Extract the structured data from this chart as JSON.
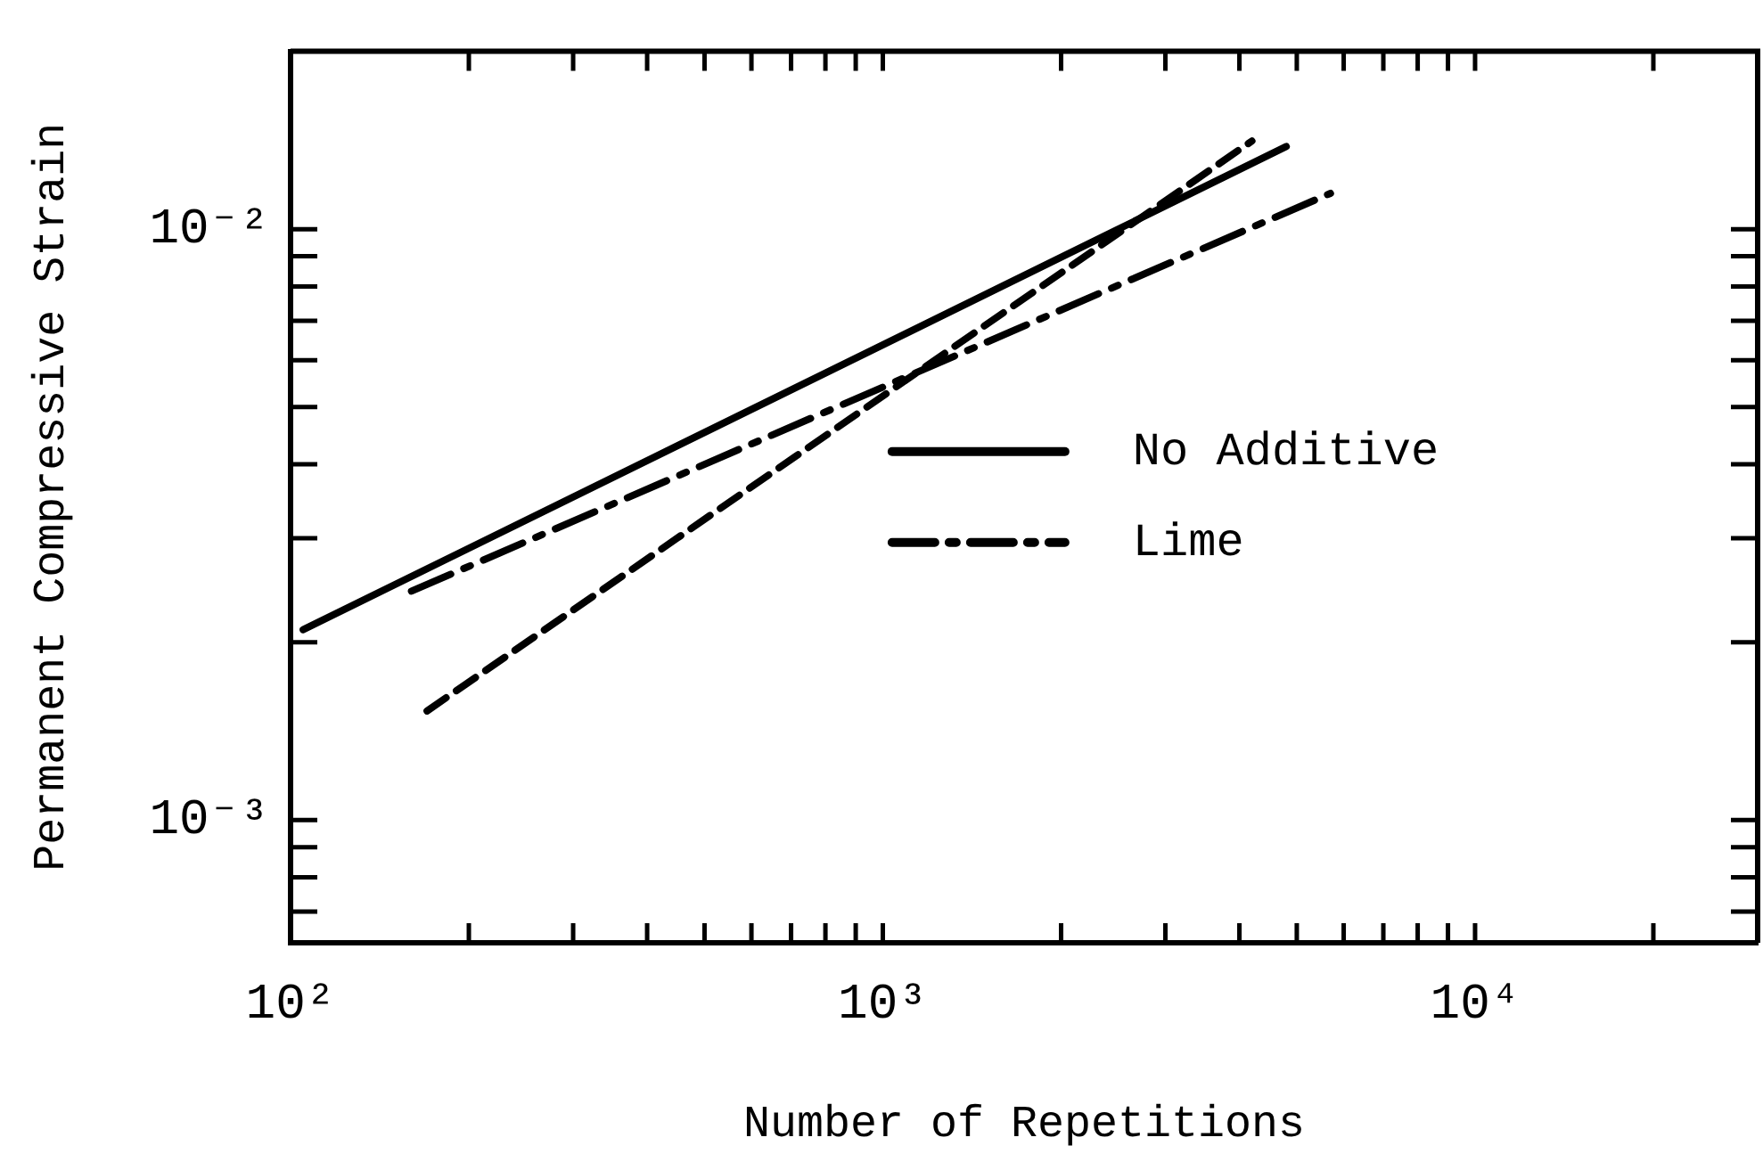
{
  "chart_data": {
    "type": "line",
    "xlabel": "Number of Repetitions",
    "ylabel": "Permanent Compressive Strain",
    "log": "xy",
    "grid": false,
    "legend": "right",
    "marker": "none",
    "xlim": [
      100,
      30000
    ],
    "xticks": [
      {
        "value": 100,
        "label": "10²"
      },
      {
        "value": 200,
        "label": null
      },
      {
        "value": 300,
        "label": null
      },
      {
        "value": 400,
        "label": null
      },
      {
        "value": 500,
        "label": null
      },
      {
        "value": 600,
        "label": null
      },
      {
        "value": 700,
        "label": null
      },
      {
        "value": 800,
        "label": null
      },
      {
        "value": 900,
        "label": null
      },
      {
        "value": 1000,
        "label": "10³"
      },
      {
        "value": 2000,
        "label": null
      },
      {
        "value": 3000,
        "label": null
      },
      {
        "value": 4000,
        "label": null
      },
      {
        "value": 5000,
        "label": null
      },
      {
        "value": 6000,
        "label": null
      },
      {
        "value": 7000,
        "label": null
      },
      {
        "value": 8000,
        "label": null
      },
      {
        "value": 9000,
        "label": null
      },
      {
        "value": 10000,
        "label": "10⁴"
      },
      {
        "value": 20000,
        "label": null
      }
    ],
    "ylim": [
      0.00062,
      0.02
    ],
    "yticks": [
      {
        "value": 0.0007,
        "label": null
      },
      {
        "value": 0.0008,
        "label": null
      },
      {
        "value": 0.0009,
        "label": null
      },
      {
        "value": 0.001,
        "label": "10⁻³"
      },
      {
        "value": 0.002,
        "label": null
      },
      {
        "value": 0.003,
        "label": null
      },
      {
        "value": 0.004,
        "label": null
      },
      {
        "value": 0.005,
        "label": null
      },
      {
        "value": 0.006,
        "label": null
      },
      {
        "value": 0.007,
        "label": null
      },
      {
        "value": 0.008,
        "label": null
      },
      {
        "value": 0.009,
        "label": null
      },
      {
        "value": 0.01,
        "label": "10⁻²"
      }
    ],
    "series": [
      {
        "name": "No Additive",
        "color": "#000000",
        "line_style": "solid",
        "x": [
          105,
          4800
        ],
        "values": [
          0.0021,
          0.0138
        ]
      },
      {
        "name": "Lime",
        "color": "#000000",
        "line_style": "dashdot",
        "x": [
          160,
          5700
        ],
        "values": [
          0.00244,
          0.0115
        ]
      },
      {
        "color": "#000000",
        "line_style": "dashed",
        "x": [
          170,
          4200
        ],
        "values": [
          0.00153,
          0.0141
        ]
      }
    ]
  }
}
